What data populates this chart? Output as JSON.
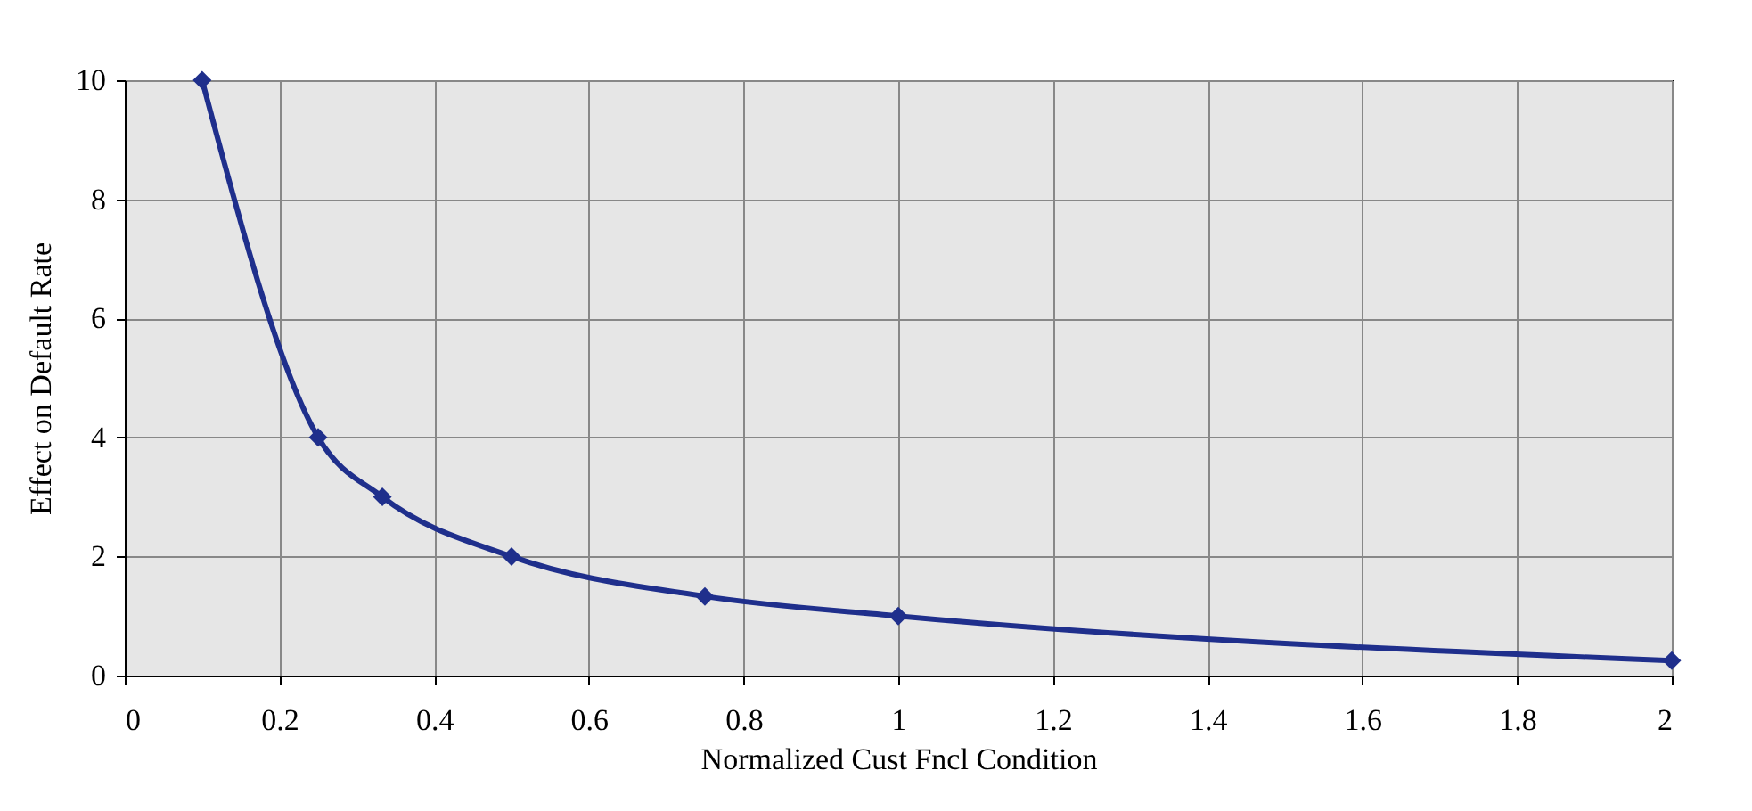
{
  "chart_data": {
    "type": "line",
    "xlabel": "Normalized Cust Fncl Condition",
    "ylabel": "Effect on Default Rate",
    "x": [
      0.1,
      0.25,
      0.333,
      0.5,
      0.75,
      1,
      2
    ],
    "series": [
      {
        "color": "#1f2f8c",
        "values": [
          10,
          4,
          3,
          2,
          1.33,
          1,
          0.25
        ]
      }
    ],
    "xlim": [
      0,
      2
    ],
    "xticks": [
      0,
      0.2,
      0.4,
      0.6,
      0.8,
      1,
      1.2,
      1.4,
      1.6,
      1.8,
      2
    ],
    "ylim": [
      0,
      10
    ],
    "yticks": [
      0,
      2,
      4,
      6,
      8,
      10
    ],
    "grid": true,
    "marker": "diamond",
    "line_style": "solid"
  }
}
